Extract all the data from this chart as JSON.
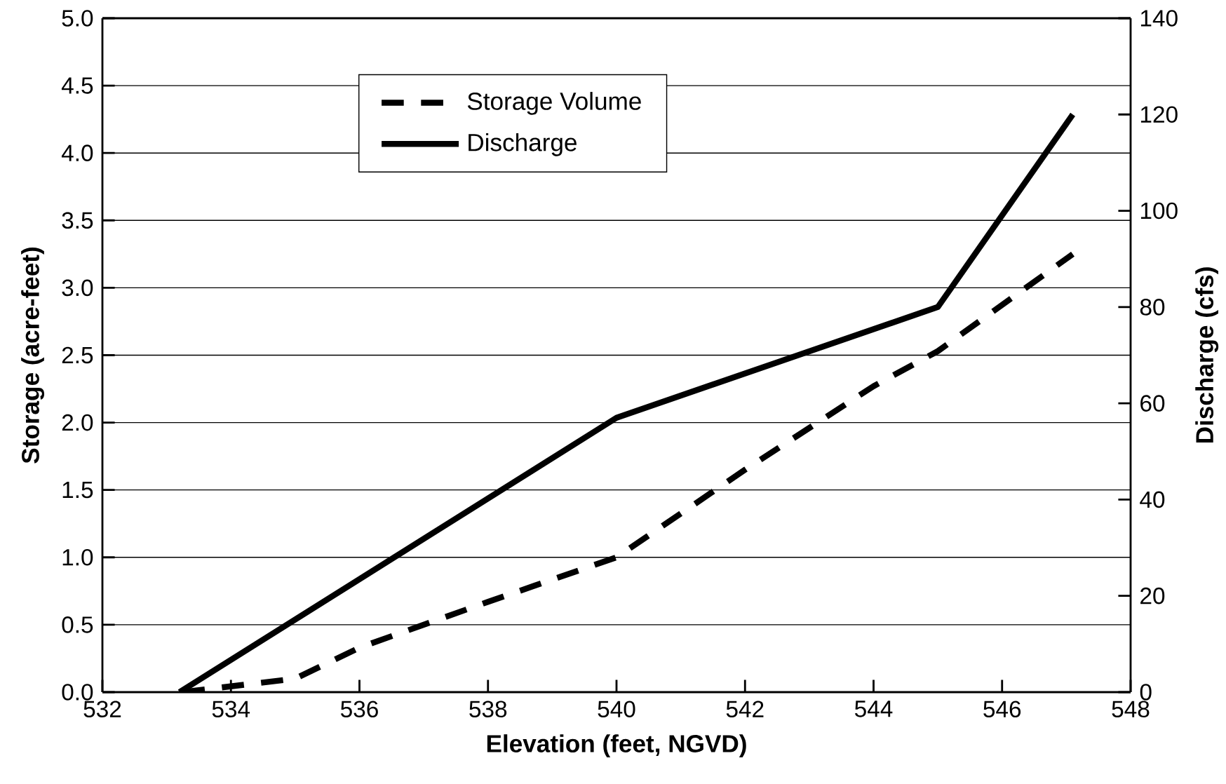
{
  "chart_data": {
    "type": "line",
    "xlabel": "Elevation (feet, NGVD)",
    "ylabel": "Storage (acre-feet)",
    "y2label": "Discharge (cfs)",
    "xlim": [
      532,
      548
    ],
    "xticks": [
      532,
      534,
      536,
      538,
      540,
      542,
      544,
      546,
      548
    ],
    "ylim": [
      0,
      5
    ],
    "yticks": [
      {
        "value": 0,
        "label": "0.0"
      },
      {
        "value": 0.5,
        "label": "0.5"
      },
      {
        "value": 1,
        "label": "1.0"
      },
      {
        "value": 1.5,
        "label": "1.5"
      },
      {
        "value": 2,
        "label": "2.0"
      },
      {
        "value": 2.5,
        "label": "2.5"
      },
      {
        "value": 3,
        "label": "3.0"
      },
      {
        "value": 3.5,
        "label": "3.5"
      },
      {
        "value": 4,
        "label": "4.0"
      },
      {
        "value": 4.5,
        "label": "4.5"
      },
      {
        "value": 5,
        "label": "5.0"
      }
    ],
    "y2lim": [
      0,
      140
    ],
    "y2ticks": [
      0,
      20,
      40,
      60,
      80,
      100,
      120,
      140
    ],
    "grid": "y",
    "legend": "top left",
    "series": [
      {
        "name": "Storage Volume",
        "color": "#000000",
        "line_style": "dashed",
        "x": [
          533.25,
          535,
          536,
          538,
          540,
          542,
          544,
          545,
          547.1
        ],
        "values": [
          0,
          0.1,
          0.33,
          0.67,
          1.0,
          1.65,
          2.27,
          2.53,
          3.25
        ]
      },
      {
        "name": "Discharge",
        "color": "#000000",
        "line_style": "solid",
        "axis": "y2",
        "x": [
          533.2,
          540,
          545,
          547.1
        ],
        "values": [
          0,
          57,
          80,
          120
        ]
      }
    ]
  }
}
